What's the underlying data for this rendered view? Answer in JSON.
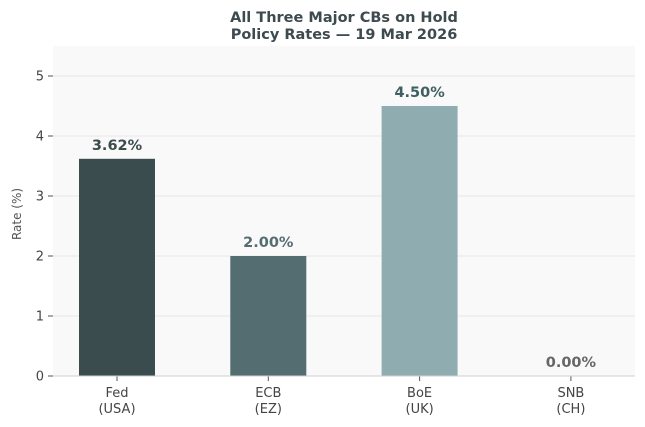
{
  "chart_data": {
    "type": "bar",
    "title": "All Three Major CBs on Hold",
    "subtitle": "Policy Rates — 19 Mar 2026",
    "ylabel": "Rate (%)",
    "ylim": [
      0,
      5.5
    ],
    "yticks": [
      "0",
      "1",
      "2",
      "3",
      "4",
      "5"
    ],
    "grid": true,
    "categories": [
      {
        "line1": "Fed",
        "line2": "(USA)"
      },
      {
        "line1": "ECB",
        "line2": "(EZ)"
      },
      {
        "line1": "BoE",
        "line2": "(UK)"
      },
      {
        "line1": "SNB",
        "line2": "(CH)"
      }
    ],
    "values": [
      3.62,
      2.0,
      4.5,
      0.0
    ],
    "data_labels": [
      "3.62%",
      "2.00%",
      "4.50%",
      "0.00%"
    ],
    "colors": [
      "#3b4c4f",
      "#546d71",
      "#8fadb1",
      "#9fb6b9"
    ],
    "label_colors": [
      "#3b4c4f",
      "#546d71",
      "#3f5f63",
      "#666666"
    ]
  }
}
